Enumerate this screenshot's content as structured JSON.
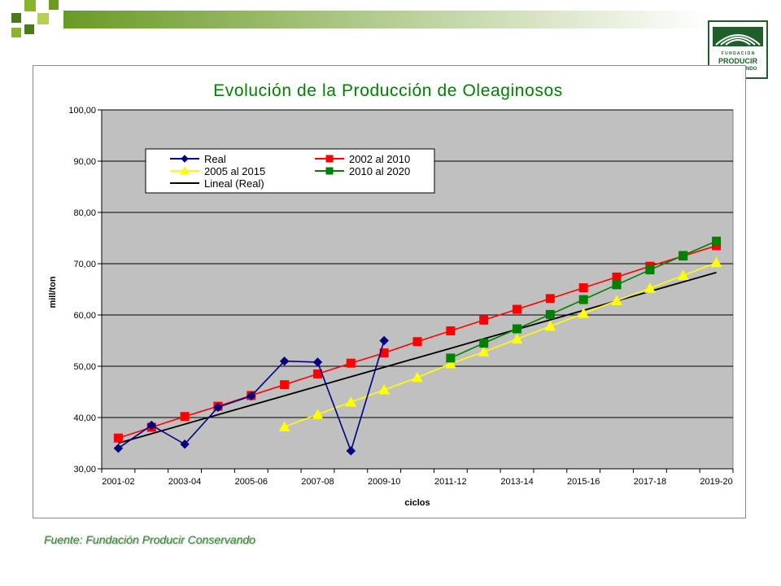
{
  "decoration": {
    "squares": [
      {
        "color": "#4a7a1c"
      },
      {
        "color": "#8ab32e"
      },
      {
        "color": "#b5cf5a"
      },
      {
        "color": "#6e9a22"
      }
    ],
    "band_colors": [
      "#6a9a25",
      "#ffffff"
    ]
  },
  "logo": {
    "top_text": "F U N D A C I O N",
    "middle_text": "PRODUCIR",
    "bottom_text": "CONSERVANDO",
    "color": "#1f5f2a"
  },
  "source_note": "Fuente: Fundación Producir Conservando",
  "chart_data": {
    "type": "line",
    "title": "Evolución de la Producción de Oleaginosos",
    "xlabel": "ciclos",
    "ylabel": "mill/ton",
    "ylim": [
      30,
      100
    ],
    "yticks": [
      "30,00",
      "40,00",
      "50,00",
      "60,00",
      "70,00",
      "80,00",
      "90,00",
      "100,00"
    ],
    "categories": [
      "2001-02",
      "2002-03",
      "2003-04",
      "2004-05",
      "2005-06",
      "2006-07",
      "2007-08",
      "2008-09",
      "2009-10",
      "2010-11",
      "2011-12",
      "2012-13",
      "2013-14",
      "2014-15",
      "2015-16",
      "2016-17",
      "2017-18",
      "2018-19",
      "2019-20"
    ],
    "x_tick_labels": [
      "2001-02",
      "2003-04",
      "2005-06",
      "2007-08",
      "2009-10",
      "2011-12",
      "2013-14",
      "2015-16",
      "2017-18",
      "2019-20"
    ],
    "plot_background": "#c0c0c0",
    "grid": true,
    "legend_position": "top-left",
    "series": [
      {
        "name": "Real",
        "color": "#000080",
        "marker": "diamond",
        "values": [
          34.0,
          38.5,
          34.8,
          42.0,
          44.2,
          51.0,
          50.8,
          33.5,
          55.0,
          null,
          null,
          null,
          null,
          null,
          null,
          null,
          null,
          null,
          null
        ]
      },
      {
        "name": "2002 al 2010",
        "color": "#ff0000",
        "marker": "square",
        "values": [
          36.0,
          38.1,
          40.2,
          42.2,
          44.3,
          46.4,
          48.5,
          50.6,
          52.6,
          54.8,
          56.9,
          59.0,
          61.1,
          63.2,
          65.3,
          67.4,
          69.5,
          71.5,
          73.5
        ]
      },
      {
        "name": "2005 al 2015",
        "color": "#ffff00",
        "marker": "triangle",
        "values": [
          null,
          null,
          null,
          null,
          null,
          38.2,
          40.6,
          43.0,
          45.4,
          47.8,
          50.5,
          52.8,
          55.3,
          57.8,
          60.3,
          62.8,
          65.2,
          67.7,
          70.2
        ]
      },
      {
        "name": "2010 al 2020",
        "color": "#008000",
        "marker": "square",
        "values": [
          null,
          null,
          null,
          null,
          null,
          null,
          null,
          null,
          null,
          null,
          51.6,
          54.5,
          57.3,
          60.1,
          63.0,
          65.9,
          68.8,
          71.6,
          74.4
        ]
      },
      {
        "name": "Lineal (Real)",
        "color": "#000000",
        "marker": "none",
        "values": [
          35.0,
          36.85,
          38.7,
          40.55,
          42.4,
          44.25,
          46.1,
          47.95,
          49.8,
          51.65,
          53.5,
          55.35,
          57.2,
          59.05,
          60.9,
          62.75,
          64.6,
          66.45,
          68.3
        ]
      }
    ]
  }
}
